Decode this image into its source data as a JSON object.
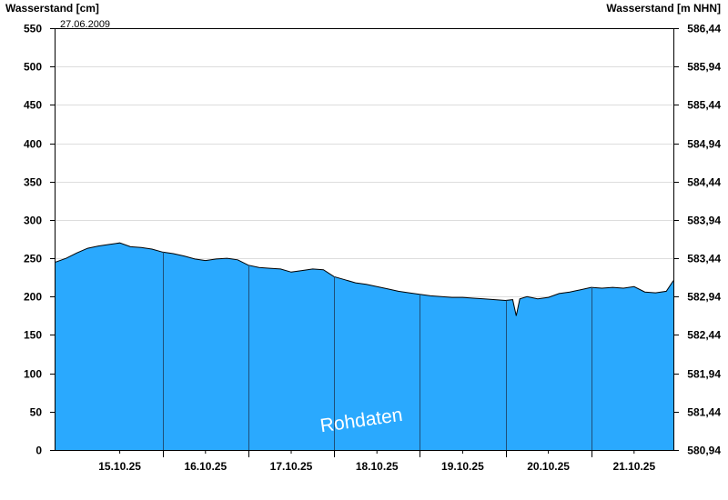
{
  "chart_data": {
    "type": "area",
    "ylabel_left": "Wasserstand [cm]",
    "ylabel_right": "Wasserstand [m NHN]",
    "date_note": "27.06.2009",
    "watermark": "Rohdaten",
    "ylim": [
      0,
      550
    ],
    "grid": true,
    "colors": {
      "fill": "#2aa9fe",
      "outline": "#000000",
      "grid": "#dddddd",
      "day_line": "#1f4f7a"
    },
    "yticks_left": [
      "0",
      "50",
      "100",
      "150",
      "200",
      "250",
      "300",
      "350",
      "400",
      "450",
      "500",
      "550"
    ],
    "yticks_right": [
      "580,94",
      "581,44",
      "581,94",
      "582,44",
      "582,94",
      "583,44",
      "583,94",
      "584,44",
      "584,94",
      "585,44",
      "585,94",
      "586,44"
    ],
    "days": [
      "15.10.25",
      "16.10.25",
      "17.10.25",
      "18.10.25",
      "19.10.25",
      "20.10.25",
      "21.10.25"
    ],
    "x_start": "14.10.25 18:00",
    "x_end": "21.10.25 23:00",
    "series": [
      {
        "x": [
          "14.10.25 18:00",
          "14.10.25 21:00",
          "15.10.25 00:00",
          "15.10.25 03:00",
          "15.10.25 06:00",
          "15.10.25 09:00",
          "15.10.25 12:00",
          "15.10.25 15:00",
          "15.10.25 18:00",
          "15.10.25 21:00",
          "16.10.25 00:00",
          "16.10.25 03:00",
          "16.10.25 06:00",
          "16.10.25 09:00",
          "16.10.25 12:00",
          "16.10.25 15:00",
          "16.10.25 18:00",
          "16.10.25 21:00",
          "17.10.25 00:00",
          "17.10.25 03:00",
          "17.10.25 06:00",
          "17.10.25 09:00",
          "17.10.25 12:00",
          "17.10.25 15:00",
          "17.10.25 18:00",
          "17.10.25 21:00",
          "18.10.25 00:00",
          "18.10.25 03:00",
          "18.10.25 06:00",
          "18.10.25 09:00",
          "18.10.25 12:00",
          "18.10.25 15:00",
          "18.10.25 18:00",
          "18.10.25 21:00",
          "19.10.25 00:00",
          "19.10.25 03:00",
          "19.10.25 06:00",
          "19.10.25 09:00",
          "19.10.25 12:00",
          "19.10.25 15:00",
          "19.10.25 18:00",
          "19.10.25 21:00",
          "20.10.25 00:00",
          "20.10.25 02:00",
          "20.10.25 03:00",
          "20.10.25 04:00",
          "20.10.25 06:00",
          "20.10.25 09:00",
          "20.10.25 12:00",
          "20.10.25 15:00",
          "20.10.25 18:00",
          "20.10.25 21:00",
          "21.10.25 00:00",
          "21.10.25 03:00",
          "21.10.25 06:00",
          "21.10.25 09:00",
          "21.10.25 12:00",
          "21.10.25 15:00",
          "21.10.25 18:00",
          "21.10.25 21:00",
          "21.10.25 23:00"
        ],
        "values": [
          245,
          250,
          257,
          263,
          266,
          268,
          270,
          265,
          264,
          262,
          258,
          256,
          253,
          249,
          247,
          249,
          250,
          248,
          241,
          238,
          237,
          236,
          232,
          234,
          236,
          235,
          226,
          222,
          218,
          216,
          213,
          210,
          207,
          205,
          203,
          201,
          200,
          199,
          199,
          198,
          197,
          196,
          195,
          196,
          175,
          197,
          200,
          197,
          199,
          204,
          206,
          209,
          212,
          211,
          212,
          211,
          213,
          206,
          205,
          207,
          221
        ]
      }
    ]
  }
}
